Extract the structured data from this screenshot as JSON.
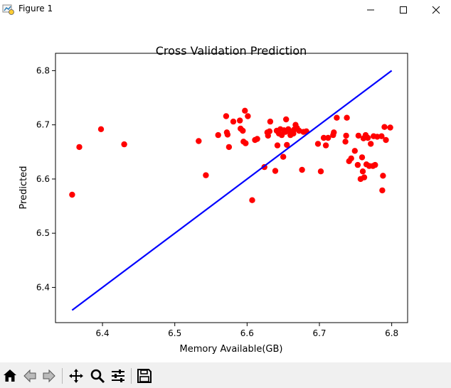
{
  "window": {
    "title": "Figure 1",
    "controls": [
      "minimize",
      "maximize",
      "close"
    ]
  },
  "toolbar": {
    "icons": [
      "home-icon",
      "back-arrow-icon",
      "forward-arrow-icon",
      "pan-move-icon",
      "zoom-magnifier-icon",
      "configure-subplots-icon",
      "save-floppy-icon"
    ]
  },
  "chart_data": {
    "type": "scatter",
    "title": "Cross Validation Prediction",
    "xlabel": "Memory Available(GB)",
    "ylabel": "Predicted",
    "xlim": [
      6.335,
      6.822
    ],
    "ylim": [
      6.335,
      6.832
    ],
    "xticks": [
      "6.4",
      "6.5",
      "6.6",
      "6.7",
      "6.8"
    ],
    "yticks": [
      "6.4",
      "6.5",
      "6.6",
      "6.7",
      "6.8"
    ],
    "grid": false,
    "legend": "none",
    "colors": {
      "points": "#ff0000",
      "line": "#0000ff"
    },
    "line": {
      "x": [
        6.358,
        6.8
      ],
      "y": [
        6.358,
        6.8
      ]
    },
    "points": [
      [
        6.358,
        6.571
      ],
      [
        6.368,
        6.659
      ],
      [
        6.398,
        6.692
      ],
      [
        6.43,
        6.664
      ],
      [
        6.533,
        6.67
      ],
      [
        6.543,
        6.607
      ],
      [
        6.56,
        6.681
      ],
      [
        6.571,
        6.716
      ],
      [
        6.572,
        6.686
      ],
      [
        6.573,
        6.682
      ],
      [
        6.575,
        6.659
      ],
      [
        6.581,
        6.706
      ],
      [
        6.59,
        6.708
      ],
      [
        6.591,
        6.693
      ],
      [
        6.594,
        6.689
      ],
      [
        6.595,
        6.669
      ],
      [
        6.597,
        6.726
      ],
      [
        6.598,
        6.666
      ],
      [
        6.601,
        6.716
      ],
      [
        6.607,
        6.561
      ],
      [
        6.611,
        6.672
      ],
      [
        6.614,
        6.674
      ],
      [
        6.624,
        6.622
      ],
      [
        6.628,
        6.686
      ],
      [
        6.629,
        6.68
      ],
      [
        6.631,
        6.688
      ],
      [
        6.632,
        6.706
      ],
      [
        6.639,
        6.615
      ],
      [
        6.641,
        6.689
      ],
      [
        6.642,
        6.662
      ],
      [
        6.644,
        6.684
      ],
      [
        6.646,
        6.692
      ],
      [
        6.648,
        6.681
      ],
      [
        6.65,
        6.641
      ],
      [
        6.651,
        6.69
      ],
      [
        6.653,
        6.687
      ],
      [
        6.654,
        6.71
      ],
      [
        6.655,
        6.663
      ],
      [
        6.657,
        6.692
      ],
      [
        6.659,
        6.688
      ],
      [
        6.66,
        6.681
      ],
      [
        6.662,
        6.685
      ],
      [
        6.664,
        6.684
      ],
      [
        6.665,
        6.691
      ],
      [
        6.667,
        6.7
      ],
      [
        6.669,
        6.694
      ],
      [
        6.672,
        6.689
      ],
      [
        6.676,
        6.617
      ],
      [
        6.678,
        6.687
      ],
      [
        6.682,
        6.688
      ],
      [
        6.698,
        6.665
      ],
      [
        6.702,
        6.614
      ],
      [
        6.706,
        6.676
      ],
      [
        6.709,
        6.662
      ],
      [
        6.712,
        6.676
      ],
      [
        6.719,
        6.681
      ],
      [
        6.72,
        6.686
      ],
      [
        6.724,
        6.713
      ],
      [
        6.736,
        6.669
      ],
      [
        6.737,
        6.68
      ],
      [
        6.738,
        6.713
      ],
      [
        6.741,
        6.633
      ],
      [
        6.744,
        6.638
      ],
      [
        6.749,
        6.652
      ],
      [
        6.753,
        6.626
      ],
      [
        6.754,
        6.68
      ],
      [
        6.757,
        6.6
      ],
      [
        6.759,
        6.64
      ],
      [
        6.76,
        6.614
      ],
      [
        6.761,
        6.675
      ],
      [
        6.762,
        6.603
      ],
      [
        6.764,
        6.681
      ],
      [
        6.765,
        6.627
      ],
      [
        6.767,
        6.676
      ],
      [
        6.769,
        6.624
      ],
      [
        6.771,
        6.665
      ],
      [
        6.774,
        6.624
      ],
      [
        6.775,
        6.679
      ],
      [
        6.777,
        6.626
      ],
      [
        6.78,
        6.678
      ],
      [
        6.786,
        6.679
      ],
      [
        6.787,
        6.579
      ],
      [
        6.788,
        6.606
      ],
      [
        6.79,
        6.696
      ],
      [
        6.792,
        6.672
      ],
      [
        6.798,
        6.695
      ]
    ]
  }
}
